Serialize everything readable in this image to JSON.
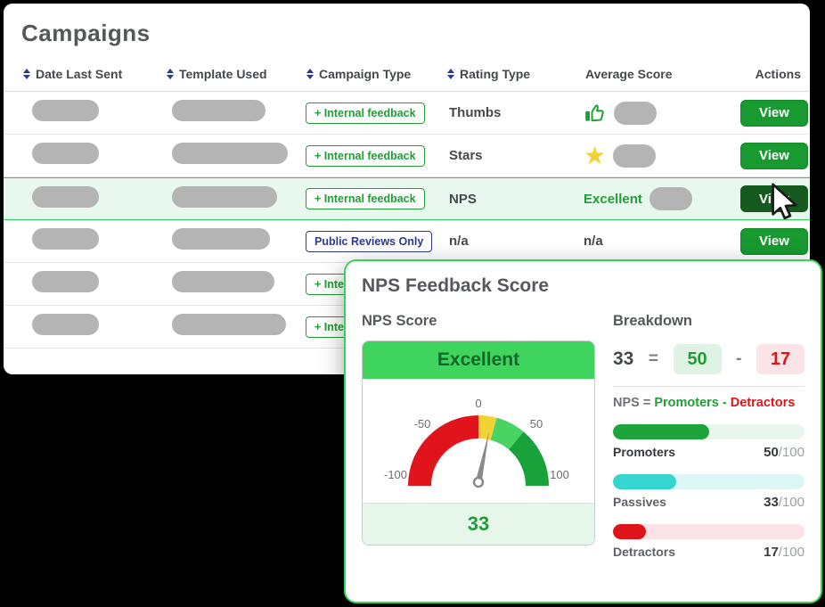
{
  "page": {
    "title": "Campaigns"
  },
  "table": {
    "columns": [
      {
        "label": "Date Last Sent",
        "sortable": true
      },
      {
        "label": "Template Used",
        "sortable": true
      },
      {
        "label": "Campaign Type",
        "sortable": true
      },
      {
        "label": "Rating Type",
        "sortable": true
      },
      {
        "label": "Average Score",
        "sortable": false
      },
      {
        "label": "Actions",
        "sortable": false
      }
    ],
    "view_label": "View",
    "rows": [
      {
        "campaign_type": "+ Internal feedback",
        "rating_type": "Thumbs",
        "score_icon": "thumbs-up-icon"
      },
      {
        "campaign_type": "+ Internal feedback",
        "rating_type": "Stars",
        "score_icon": "star-icon"
      },
      {
        "campaign_type": "+ Internal feedback",
        "rating_type": "NPS",
        "average_score": "Excellent",
        "highlighted": true
      },
      {
        "campaign_type": "Public Reviews Only",
        "rating_type": "n/a",
        "average_score": "n/a"
      },
      {
        "campaign_type": "+ Internal feedback"
      },
      {
        "campaign_type": "+ Internal feedback"
      }
    ]
  },
  "modal": {
    "title": "NPS Feedback Score",
    "gauge": {
      "heading": "NPS Score",
      "status": "Excellent",
      "value": "33",
      "ticks": {
        "min": "-100",
        "neg50": "-50",
        "zero": "0",
        "pos50": "50",
        "max": "100"
      }
    },
    "breakdown": {
      "heading": "Breakdown",
      "equation": {
        "total": "33",
        "equals": "=",
        "promoters": "50",
        "minus": "-",
        "detractors": "17"
      },
      "formula": {
        "lhs": "NPS = ",
        "promoters": "Promoters",
        "minus": " - ",
        "detractors": "Detractors"
      },
      "bars": [
        {
          "label": "Promoters",
          "value": "50",
          "max": "/100",
          "pct": 50,
          "color": "#1ea43a",
          "track": "#e7f7eb"
        },
        {
          "label": "Passives",
          "value": "33",
          "max": "/100",
          "pct": 33,
          "color": "#35d6cf",
          "track": "#dcf6f6"
        },
        {
          "label": "Detractors",
          "value": "17",
          "max": "/100",
          "pct": 17,
          "color": "#e0131b",
          "track": "#fbe3e5"
        }
      ]
    }
  },
  "chart_data": [
    {
      "type": "gauge",
      "title": "NPS Score",
      "value": 33,
      "range": [
        -100,
        100
      ],
      "status": "Excellent",
      "ticks": [
        -100,
        -50,
        0,
        50,
        100
      ],
      "segments": [
        {
          "from": -100,
          "to": 0,
          "color": "#e1141c"
        },
        {
          "from": 0,
          "to": 15,
          "color": "#f3d334"
        },
        {
          "from": 15,
          "to": 50,
          "color": "#49d363"
        },
        {
          "from": 50,
          "to": 100,
          "color": "#19a23a"
        }
      ]
    },
    {
      "type": "bar",
      "title": "Breakdown",
      "categories": [
        "Promoters",
        "Passives",
        "Detractors"
      ],
      "values": [
        50,
        33,
        17
      ],
      "ylim": [
        0,
        100
      ],
      "colors": [
        "#1ea43a",
        "#35d6cf",
        "#e0131b"
      ]
    }
  ],
  "colors": {
    "accent_green": "#1f9e35",
    "highlight_row": "#e9f8ee",
    "modal_border": "#35d356",
    "navy": "#2d3a8f",
    "red": "#e0131b",
    "yellow": "#f3d334",
    "cyan": "#35d6cf"
  }
}
